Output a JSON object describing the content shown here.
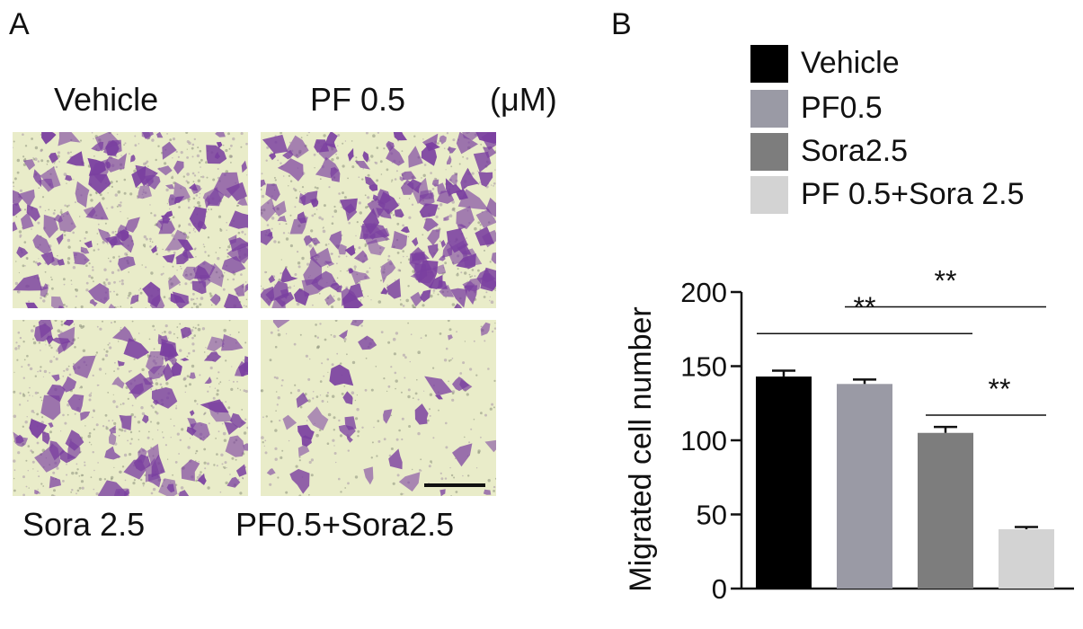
{
  "panel_a": {
    "letter": "A",
    "unit": "(μM)",
    "images": [
      {
        "label": "Vehicle",
        "density": "high"
      },
      {
        "label": "PF 0.5",
        "density": "very-high"
      },
      {
        "label": "Sora 2.5",
        "density": "medium"
      },
      {
        "label": "PF0.5+Sora2.5",
        "density": "low"
      }
    ],
    "stain_color": "#7a3fa0",
    "background_color": "#e9ecc9"
  },
  "panel_b": {
    "letter": "B"
  },
  "chart_data": {
    "type": "bar",
    "categories": [
      "Vehicle",
      "PF0.5",
      "Sora2.5",
      "PF 0.5+Sora 2.5"
    ],
    "values": [
      143,
      138,
      105,
      40
    ],
    "errors": [
      4,
      3,
      4,
      1.5
    ],
    "colors": [
      "#000000",
      "#9a9aa5",
      "#7d7d7d",
      "#d3d3d3"
    ],
    "ylabel": "Migrated cell number",
    "ylim": [
      0,
      200
    ],
    "yticks": [
      0,
      50,
      100,
      150,
      200
    ],
    "legend": [
      "Vehicle",
      "PF0.5",
      "Sora2.5",
      "PF 0.5+Sora 2.5"
    ],
    "legend_position": "top",
    "grid": false,
    "significance": [
      {
        "from": 0,
        "to": 2,
        "label": "**"
      },
      {
        "from": 1,
        "to": 3,
        "label": "**"
      },
      {
        "from": 2,
        "to": 3,
        "label": "**"
      }
    ]
  }
}
